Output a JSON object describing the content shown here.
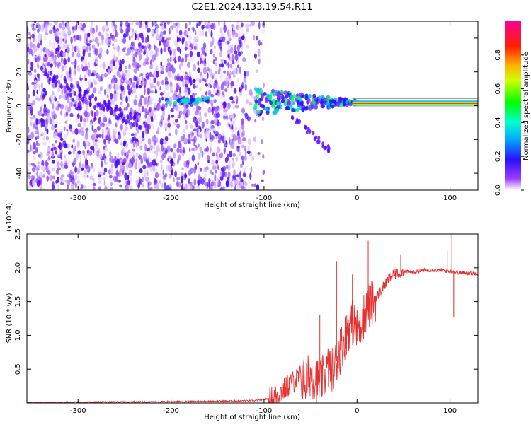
{
  "title": "C2E1.2024.133.19.54.R11",
  "chart_data": [
    {
      "type": "heatmap",
      "xlabel": "Height of straight line (km)",
      "ylabel": "Frequency (Hz)",
      "xlim": [
        -355,
        130
      ],
      "ylim": [
        -50,
        50
      ],
      "xticks": [
        -300,
        -200,
        -100,
        0,
        100
      ],
      "yticks": [
        -40,
        -20,
        0,
        20,
        40
      ],
      "colorbar": {
        "label": "Normalized spectral amplitude",
        "range": [
          0,
          1
        ],
        "ticks": [
          "0.0",
          "0.2",
          "0.4",
          "0.6",
          "0.8"
        ]
      },
      "carrier_line": {
        "frequency": 1.5,
        "x_from": -5,
        "x_to": 130
      },
      "features": [
        {
          "name": "",
          "x": [
            -205,
            -160
          ],
          "y": [
            2,
            6
          ]
        },
        {
          "name": "",
          "x": [
            -110,
            -10
          ],
          "y": [
            -10,
            16
          ]
        },
        {
          "name": "",
          "x": [
            -40,
            -30
          ],
          "y": [
            -34,
            -24
          ]
        }
      ]
    },
    {
      "type": "line",
      "xlabel": "Height of straight line (km)",
      "ylabel": "SNR (10 * v/v)",
      "y_multiplier": "(x10^4)",
      "xlim": [
        -355,
        130
      ],
      "ylim": [
        0,
        2.5
      ],
      "xticks": [
        -300,
        -200,
        -100,
        0,
        100
      ],
      "yticks": [
        "0.5",
        "1.0",
        "1.5",
        "2.0",
        "2.5"
      ],
      "series": [
        {
          "color": "#e53030",
          "x": [
            -355,
            -300,
            -250,
            -200,
            -160,
            -130,
            -110,
            -100,
            -90,
            -85,
            -80,
            -75,
            -70,
            -65,
            -60,
            -55,
            -50,
            -45,
            -40,
            -35,
            -30,
            -25,
            -20,
            -15,
            -10,
            -5,
            0,
            5,
            10,
            15,
            20,
            25,
            30,
            35,
            40,
            50,
            60,
            70,
            80,
            90,
            100,
            110,
            120,
            130
          ],
          "y": [
            0.005,
            0.01,
            0.015,
            0.02,
            0.025,
            0.03,
            0.035,
            0.05,
            0.08,
            0.12,
            0.18,
            0.25,
            0.3,
            0.35,
            0.4,
            0.3,
            0.45,
            0.35,
            0.3,
            0.4,
            0.55,
            0.5,
            0.7,
            0.9,
            1.1,
            1.2,
            1.05,
            1.2,
            1.4,
            1.45,
            1.55,
            1.65,
            1.75,
            1.85,
            1.9,
            1.95,
            1.93,
            1.96,
            1.97,
            1.96,
            1.95,
            1.93,
            1.92,
            1.92
          ]
        }
      ],
      "spikes": [
        {
          "x": -40,
          "y": 1.3
        },
        {
          "x": -22,
          "y": 2.1
        },
        {
          "x": -18,
          "y": 1.1
        },
        {
          "x": -5,
          "y": 1.9
        },
        {
          "x": 12,
          "y": 2.4
        },
        {
          "x": 47,
          "y": 2.2
        },
        {
          "x": 97,
          "y": 2.25
        },
        {
          "x": 102,
          "y": 2.55
        },
        {
          "x": 104,
          "y": 1.27
        }
      ]
    }
  ]
}
